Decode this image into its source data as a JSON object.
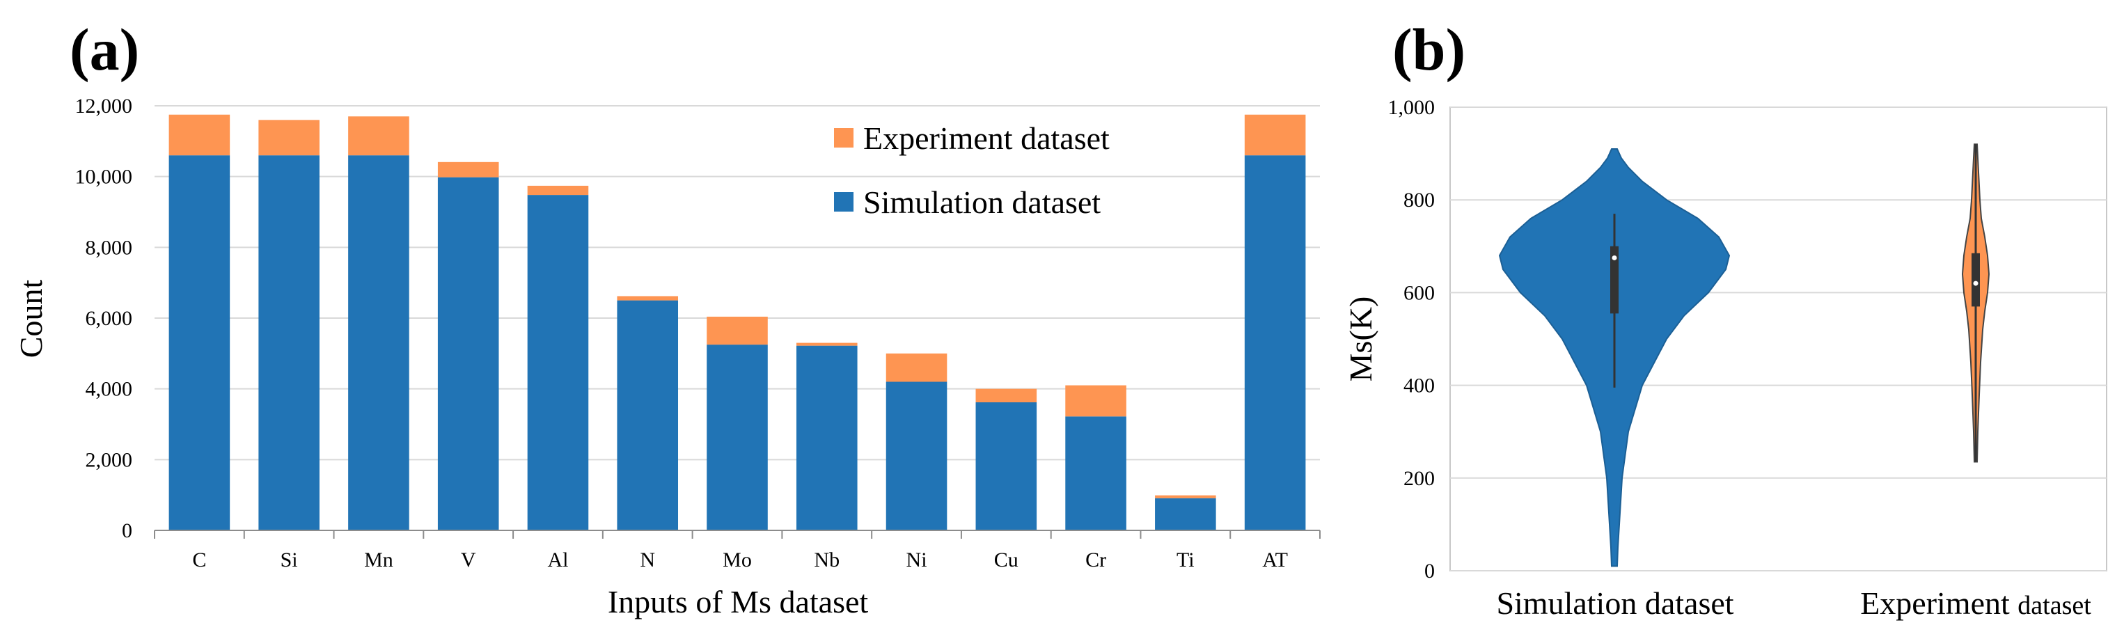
{
  "chart_data": [
    {
      "panel": "(a)",
      "type": "bar",
      "stacked": true,
      "categories": [
        "C",
        "Si",
        "Mn",
        "V",
        "Al",
        "N",
        "Mo",
        "Nb",
        "Ni",
        "Cu",
        "Cr",
        "Ti",
        "AT"
      ],
      "series": [
        {
          "name": "Simulation dataset",
          "color": "#2174B5",
          "values": [
            10600,
            10600,
            10600,
            9980,
            9480,
            6500,
            5250,
            5220,
            4200,
            3620,
            3220,
            910,
            10600
          ]
        },
        {
          "name": "Experiment dataset",
          "color": "#FE9552",
          "values": [
            1150,
            1000,
            1100,
            430,
            260,
            120,
            790,
            80,
            800,
            380,
            880,
            80,
            1150
          ]
        }
      ],
      "ylim": [
        0,
        12000
      ],
      "yticks": [
        0,
        2000,
        4000,
        6000,
        8000,
        10000,
        12000
      ],
      "ytick_labels": [
        "0",
        "2,000",
        "4,000",
        "6,000",
        "8,000",
        "10,000",
        "12,000"
      ],
      "xlabel": "Inputs of Ms dataset",
      "ylabel": "Count",
      "legend_order": [
        "Experiment dataset",
        "Simulation dataset"
      ],
      "legend_position": "top-right",
      "grid": true
    },
    {
      "panel": "(b)",
      "type": "violin",
      "categories": [
        "Simulation dataset",
        "Experiment dataset"
      ],
      "series": [
        {
          "name": "Simulation dataset",
          "color": "#2174B5",
          "kde": [
            [
              10,
              8
            ],
            [
              50,
              10
            ],
            [
              100,
              14
            ],
            [
              200,
              22
            ],
            [
              300,
              40
            ],
            [
              400,
              80
            ],
            [
              500,
              150
            ],
            [
              550,
              200
            ],
            [
              600,
              270
            ],
            [
              650,
              320
            ],
            [
              680,
              330
            ],
            [
              720,
              300
            ],
            [
              760,
              240
            ],
            [
              800,
              150
            ],
            [
              840,
              80
            ],
            [
              870,
              40
            ],
            [
              890,
              20
            ],
            [
              910,
              8
            ]
          ],
          "whisker_low": 395,
          "q1": 555,
          "median": 675,
          "q3": 700,
          "whisker_high": 770
        },
        {
          "name": "Experiment dataset",
          "color": "#FE9552",
          "kde": [
            [
              235,
              4
            ],
            [
              300,
              6
            ],
            [
              380,
              10
            ],
            [
              450,
              14
            ],
            [
              520,
              20
            ],
            [
              560,
              26
            ],
            [
              600,
              34
            ],
            [
              640,
              38
            ],
            [
              680,
              34
            ],
            [
              720,
              26
            ],
            [
              760,
              16
            ],
            [
              800,
              12
            ],
            [
              860,
              8
            ],
            [
              920,
              4
            ]
          ],
          "whisker_low": 235,
          "q1": 570,
          "median": 620,
          "q3": 685,
          "whisker_high": 920
        }
      ],
      "ylim": [
        0,
        1000
      ],
      "yticks": [
        0,
        200,
        400,
        600,
        800,
        1000
      ],
      "ytick_labels": [
        "0",
        "200",
        "400",
        "600",
        "800",
        "1,000"
      ],
      "xlabel": "",
      "ylabel": "Ms(K)",
      "category_labels": [
        {
          "main": "Simulation dataset",
          "rest": ""
        },
        {
          "main": "Experiment ",
          "rest": "dataset"
        }
      ],
      "grid": true
    }
  ]
}
